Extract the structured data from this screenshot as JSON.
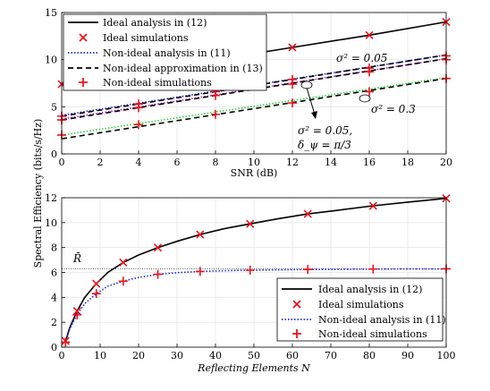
{
  "y_shared_label": "Spectral Efficiency (bits/s/Hz)",
  "chart_data": [
    {
      "type": "line",
      "xlabel": "SNR (dB)",
      "ylabel": "",
      "xlim": [
        0,
        20
      ],
      "ylim": [
        0,
        15
      ],
      "xticks": [
        0,
        2,
        4,
        6,
        8,
        10,
        12,
        14,
        16,
        18,
        20
      ],
      "yticks": [
        0,
        5,
        10,
        15
      ],
      "grid": true,
      "legend_position": "top-left",
      "annotations": [
        "σ² = 0.05",
        "σ² = 0.3",
        "σ² = 0.05,",
        "δ_ψ = π/3"
      ],
      "series": [
        {
          "name": "Ideal analysis in (12)",
          "style": "solid",
          "color": "#000000",
          "x": [
            0,
            4,
            8,
            12,
            16,
            20
          ],
          "y": [
            7.4,
            9.0,
            10.0,
            11.3,
            12.6,
            14.0
          ]
        },
        {
          "name": "Ideal simulations",
          "style": "marker-x",
          "color": "#e8141e",
          "x": [
            0,
            12,
            16,
            20
          ],
          "y": [
            7.4,
            11.3,
            12.6,
            14.0
          ]
        },
        {
          "name": "Non-ideal analysis in (11)",
          "style": "dotted",
          "color": "#1b2ad8",
          "x": [
            0,
            20
          ],
          "y": [
            4.1,
            10.5
          ]
        },
        {
          "name": "Non-ideal approximation in (13)",
          "style": "dashed",
          "color": "#000000",
          "x": [
            0,
            20
          ],
          "y": [
            4.0,
            10.5
          ]
        },
        {
          "name": "Non-ideal simulations",
          "style": "marker-plus",
          "color": "#e8141e",
          "x": [
            0,
            4,
            8,
            12,
            16,
            20
          ],
          "y": [
            4.0,
            5.3,
            6.6,
            7.9,
            9.1,
            10.4
          ]
        },
        {
          "name": "",
          "style": "dotted",
          "color": "#c218c2",
          "x": [
            0,
            20
          ],
          "y": [
            3.7,
            10.1
          ]
        },
        {
          "name": "",
          "style": "dashed",
          "color": "#000000",
          "x": [
            0,
            20
          ],
          "y": [
            3.6,
            10.1
          ]
        },
        {
          "name": "",
          "style": "marker-plus",
          "color": "#e8141e",
          "x": [
            0,
            4,
            8,
            12,
            16,
            20
          ],
          "y": [
            3.6,
            4.9,
            6.2,
            7.4,
            8.7,
            10.0
          ]
        },
        {
          "name": "",
          "style": "dotted",
          "color": "#2fd43a",
          "x": [
            0,
            20
          ],
          "y": [
            2.0,
            8.1
          ]
        },
        {
          "name": "",
          "style": "dashed",
          "color": "#000000",
          "x": [
            0,
            20
          ],
          "y": [
            1.6,
            8.0
          ]
        },
        {
          "name": "",
          "style": "marker-plus",
          "color": "#e8141e",
          "x": [
            0,
            4,
            8,
            12,
            16,
            20
          ],
          "y": [
            2.0,
            3.1,
            4.2,
            5.4,
            6.6,
            8.0
          ]
        }
      ]
    },
    {
      "type": "line",
      "xlabel": "Reflecting Elements N",
      "ylabel": "",
      "xlim": [
        0,
        100
      ],
      "ylim": [
        0,
        12
      ],
      "xticks": [
        0,
        10,
        20,
        30,
        40,
        50,
        60,
        70,
        80,
        90,
        100
      ],
      "yticks": [
        0,
        2,
        4,
        6,
        8,
        10,
        12
      ],
      "grid": true,
      "legend_position": "bottom-right",
      "reference_line": {
        "label": "R̄",
        "y": 6.3
      },
      "series": [
        {
          "name": "Ideal analysis in (12)",
          "style": "solid",
          "color": "#000000",
          "x": [
            1,
            2,
            4,
            6,
            9,
            12,
            16,
            20,
            25,
            30,
            36,
            42,
            49,
            56,
            64,
            72,
            81,
            90,
            100
          ],
          "y": [
            0.45,
            1.5,
            2.9,
            4.0,
            5.1,
            6.0,
            6.8,
            7.4,
            8.0,
            8.5,
            9.05,
            9.5,
            9.9,
            10.3,
            10.7,
            11.0,
            11.35,
            11.65,
            11.95
          ]
        },
        {
          "name": "Ideal simulations",
          "style": "marker-x",
          "color": "#e8141e",
          "x": [
            1,
            4,
            9,
            16,
            25,
            36,
            49,
            64,
            81,
            100
          ],
          "y": [
            0.5,
            2.9,
            5.1,
            6.8,
            8.0,
            9.05,
            9.9,
            10.7,
            11.35,
            11.95
          ]
        },
        {
          "name": "Non-ideal analysis in (11)",
          "style": "dotted",
          "color": "#1b2ad8",
          "x": [
            1,
            2,
            4,
            6,
            9,
            12,
            16,
            20,
            25,
            30,
            36,
            42,
            49,
            56,
            64,
            72,
            81,
            90,
            100
          ],
          "y": [
            0.4,
            1.4,
            2.6,
            3.5,
            4.3,
            4.9,
            5.3,
            5.6,
            5.85,
            5.98,
            6.08,
            6.14,
            6.18,
            6.21,
            6.24,
            6.25,
            6.27,
            6.28,
            6.29
          ]
        },
        {
          "name": "Non-ideal simulations",
          "style": "marker-plus",
          "color": "#e8141e",
          "x": [
            1,
            4,
            9,
            16,
            25,
            36,
            49,
            64,
            81,
            100
          ],
          "y": [
            0.4,
            2.6,
            4.3,
            5.3,
            5.85,
            6.08,
            6.18,
            6.24,
            6.27,
            6.29
          ]
        }
      ]
    }
  ]
}
